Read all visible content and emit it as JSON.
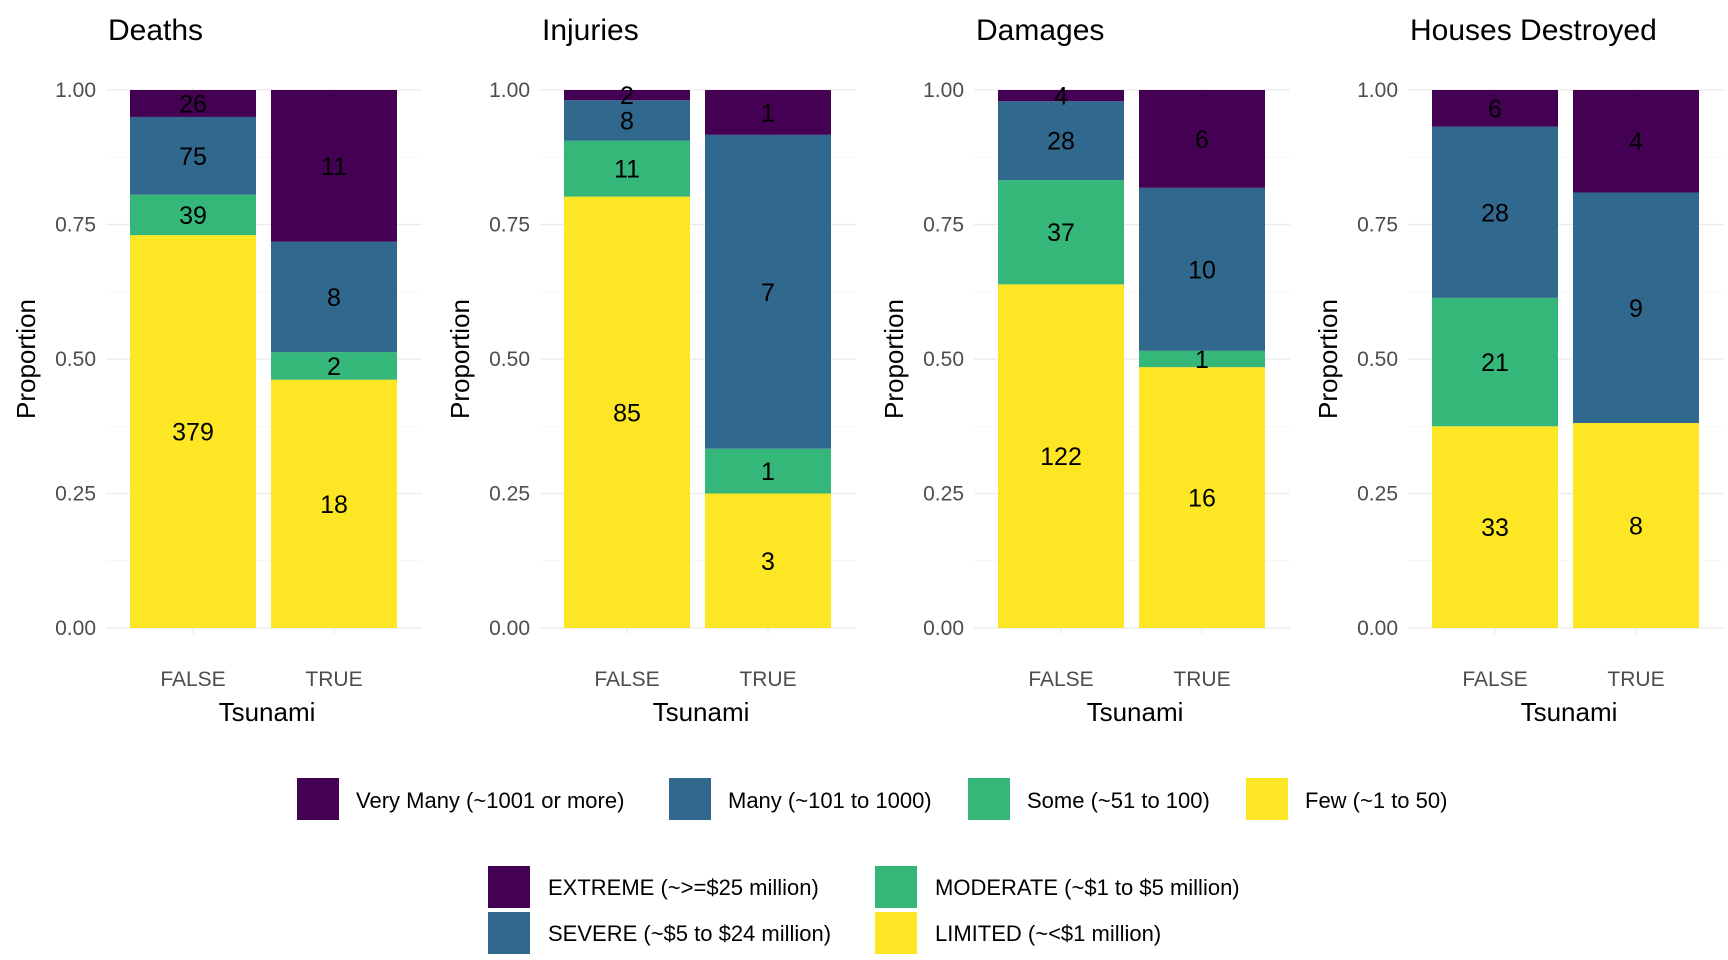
{
  "chart_data": {
    "type": "bar",
    "stacked": true,
    "normalized": true,
    "grid": true,
    "ylim": [
      0,
      1
    ],
    "yticks": [
      "0.00",
      "0.25",
      "0.50",
      "0.75",
      "1.00"
    ],
    "ytick_values": [
      0,
      0.25,
      0.5,
      0.75,
      1
    ],
    "xlabel": "Tsunami",
    "ylabel": "Proportion",
    "categories": [
      "FALSE",
      "TRUE"
    ],
    "panels": [
      {
        "title": "Deaths",
        "series": [
          {
            "name": "Very Many (~1001 or more)",
            "values": [
              26,
              11
            ],
            "labels": [
              "26",
              "11"
            ]
          },
          {
            "name": "Many (~101 to 1000)",
            "values": [
              75,
              8
            ],
            "labels": [
              "75",
              "8"
            ]
          },
          {
            "name": "Some (~51 to 100)",
            "values": [
              39,
              2
            ],
            "labels": [
              "39",
              "2"
            ]
          },
          {
            "name": "Few (~1 to 50)",
            "values": [
              379,
              18
            ],
            "labels": [
              "379",
              "18"
            ]
          }
        ]
      },
      {
        "title": "Injuries",
        "series": [
          {
            "name": "Very Many (~1001 or more)",
            "values": [
              2,
              1
            ],
            "labels": [
              "2",
              "1"
            ]
          },
          {
            "name": "Many (~101 to 1000)",
            "values": [
              8,
              7
            ],
            "labels": [
              "8",
              "7"
            ]
          },
          {
            "name": "Some (~51 to 100)",
            "values": [
              11,
              1
            ],
            "labels": [
              "11",
              "1"
            ]
          },
          {
            "name": "Few (~1 to 50)",
            "values": [
              85,
              3
            ],
            "labels": [
              "85",
              "3"
            ]
          }
        ]
      },
      {
        "title": "Damages",
        "series": [
          {
            "name": "EXTREME (~>=$25 million)",
            "values": [
              4,
              6
            ],
            "labels": [
              "4",
              "6"
            ]
          },
          {
            "name": "SEVERE (~$5 to $24 million)",
            "values": [
              28,
              10
            ],
            "labels": [
              "28",
              "10"
            ]
          },
          {
            "name": "MODERATE (~$1 to $5 million)",
            "values": [
              37,
              1
            ],
            "labels": [
              "37",
              "1"
            ]
          },
          {
            "name": "LIMITED (~<$1 million)",
            "values": [
              122,
              16
            ],
            "labels": [
              "122",
              "16"
            ]
          }
        ]
      },
      {
        "title": "Houses Destroyed",
        "series": [
          {
            "name": "Very Many (~1001 or more)",
            "values": [
              6,
              4
            ],
            "labels": [
              "6",
              "4"
            ]
          },
          {
            "name": "Many (~101 to 1000)",
            "values": [
              28,
              9
            ],
            "labels": [
              "28",
              "9"
            ]
          },
          {
            "name": "Some (~51 to 100)",
            "values": [
              21,
              0
            ],
            "labels": [
              "21",
              ""
            ]
          },
          {
            "name": "Few (~1 to 50)",
            "values": [
              33,
              8
            ],
            "labels": [
              "33",
              "8"
            ]
          }
        ]
      }
    ],
    "colors": [
      "#440154",
      "#31688E",
      "#35B779",
      "#FDE725"
    ],
    "legends": [
      {
        "placement": "bottom",
        "entries": [
          "Very Many (~1001 or more)",
          "Many (~101 to 1000)",
          "Some (~51 to 100)",
          "Few (~1 to 50)"
        ]
      },
      {
        "placement": "bottom",
        "entries": [
          "EXTREME (~>=$25 million)",
          "SEVERE (~$5 to $24 million)",
          "MODERATE (~$1 to $5 million)",
          "LIMITED (~<$1 million)"
        ]
      }
    ]
  }
}
